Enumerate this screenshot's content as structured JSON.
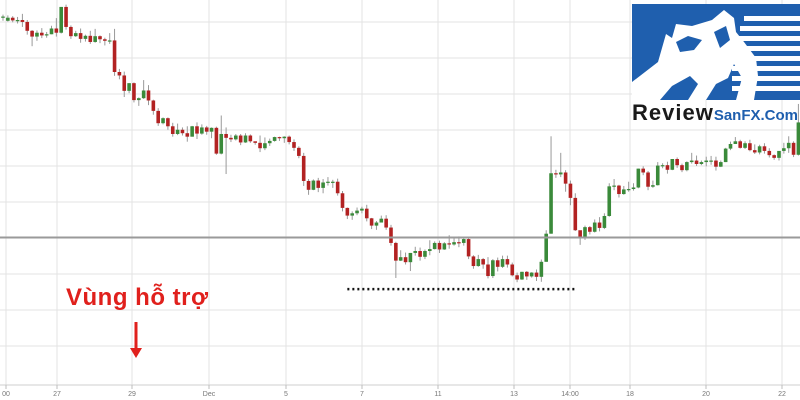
{
  "chart_data": {
    "type": "candlestick",
    "x_tick_labels": [
      "00",
      "27",
      "29",
      "Dec",
      "5",
      "7",
      "11",
      "13",
      "14:00",
      "18",
      "20",
      "22"
    ],
    "grid": true,
    "ylim": [
      0,
      100
    ],
    "colors": {
      "up": "#3a8a3a",
      "down": "#b22222",
      "grid": "#e3e3e3",
      "support_line": "#9a9a9a",
      "neckline": "#111111",
      "annotation": "#e0201c"
    },
    "candles": [
      [
        95.6,
        95.7,
        94.6,
        96.2
      ],
      [
        94.6,
        95.4,
        94.4,
        96.0
      ],
      [
        95.4,
        94.7,
        94.2,
        95.8
      ],
      [
        94.7,
        94.8,
        93.9,
        95.6
      ],
      [
        94.8,
        94.3,
        93.0,
        96.4
      ],
      [
        94.3,
        92.0,
        91.0,
        94.8
      ],
      [
        92.0,
        90.5,
        88.0,
        92.2
      ],
      [
        90.5,
        91.5,
        89.4,
        92.1
      ],
      [
        91.5,
        90.8,
        90.1,
        92.7
      ],
      [
        90.8,
        91.1,
        90.2,
        91.7
      ],
      [
        91.1,
        92.6,
        91.1,
        93.3
      ],
      [
        92.6,
        91.5,
        90.5,
        95.3
      ],
      [
        91.5,
        98.2,
        91.3,
        98.2
      ],
      [
        98.2,
        93.0,
        92.3,
        98.8
      ],
      [
        93.0,
        90.6,
        89.9,
        93.4
      ],
      [
        90.6,
        91.4,
        90.4,
        92.0
      ],
      [
        91.4,
        89.9,
        88.9,
        92.6
      ],
      [
        89.9,
        90.7,
        89.2,
        91.0
      ],
      [
        90.7,
        89.1,
        88.6,
        92.0
      ],
      [
        89.1,
        90.6,
        88.9,
        92.5
      ],
      [
        90.6,
        89.8,
        88.8,
        90.8
      ],
      [
        89.8,
        89.4,
        88.2,
        90.2
      ],
      [
        89.4,
        89.5,
        88.6,
        91.4
      ],
      [
        89.5,
        81.3,
        80.3,
        92.5
      ],
      [
        81.3,
        80.4,
        79.4,
        82.1
      ],
      [
        80.4,
        76.4,
        74.8,
        81.4
      ],
      [
        76.4,
        78.4,
        75.8,
        78.4
      ],
      [
        78.4,
        74.0,
        73.4,
        78.6
      ],
      [
        74.0,
        74.5,
        72.5,
        74.7
      ],
      [
        74.5,
        76.5,
        74.3,
        79.2
      ],
      [
        76.5,
        73.9,
        72.7,
        77.9
      ],
      [
        73.9,
        71.2,
        70.2,
        74.1
      ],
      [
        71.2,
        68.0,
        67.3,
        71.9
      ],
      [
        68.0,
        69.3,
        67.7,
        69.5
      ],
      [
        69.3,
        67.2,
        66.3,
        69.5
      ],
      [
        67.2,
        65.2,
        64.5,
        68.1
      ],
      [
        65.2,
        66.3,
        64.9,
        67.9
      ],
      [
        66.3,
        65.4,
        64.8,
        66.9
      ],
      [
        65.4,
        64.5,
        63.2,
        67.2
      ],
      [
        64.5,
        67.2,
        64.5,
        67.3
      ],
      [
        67.2,
        65.3,
        63.9,
        68.2
      ],
      [
        65.3,
        66.9,
        65.0,
        67.7
      ],
      [
        66.9,
        65.8,
        65.0,
        67.3
      ],
      [
        65.8,
        66.8,
        64.1,
        66.9
      ],
      [
        66.8,
        60.1,
        59.8,
        67.1
      ],
      [
        60.1,
        65.2,
        59.9,
        70.0
      ],
      [
        65.2,
        64.2,
        54.8,
        66.9
      ],
      [
        64.2,
        63.8,
        63.1,
        65.0
      ],
      [
        63.8,
        64.8,
        63.5,
        65.2
      ],
      [
        64.8,
        63.0,
        62.3,
        65.2
      ],
      [
        63.0,
        64.8,
        62.9,
        65.4
      ],
      [
        64.8,
        63.3,
        62.9,
        65.1
      ],
      [
        63.3,
        62.9,
        62.4,
        63.2
      ],
      [
        62.9,
        61.5,
        60.5,
        64.8
      ],
      [
        61.5,
        62.8,
        61.0,
        64.3
      ],
      [
        62.8,
        63.4,
        62.1,
        64.0
      ],
      [
        63.4,
        64.4,
        63.2,
        64.5
      ],
      [
        64.4,
        64.1,
        63.4,
        64.5
      ],
      [
        64.1,
        64.5,
        62.9,
        64.6
      ],
      [
        64.5,
        63.1,
        62.5,
        64.8
      ],
      [
        63.1,
        61.6,
        60.8,
        63.8
      ],
      [
        61.6,
        59.5,
        58.9,
        62.0
      ],
      [
        59.5,
        53.0,
        51.7,
        60.3
      ],
      [
        53.0,
        50.7,
        49.4,
        53.5
      ],
      [
        50.7,
        53.1,
        50.6,
        53.4
      ],
      [
        53.1,
        51.2,
        50.1,
        53.8
      ],
      [
        51.2,
        52.6,
        49.8,
        53.5
      ],
      [
        52.6,
        52.8,
        51.8,
        54.0
      ],
      [
        52.8,
        52.8,
        51.2,
        53.3
      ],
      [
        52.8,
        49.8,
        49.2,
        53.6
      ],
      [
        49.8,
        46.0,
        45.1,
        50.4
      ],
      [
        46.0,
        44.0,
        43.1,
        46.1
      ],
      [
        44.0,
        44.6,
        42.9,
        45.1
      ],
      [
        44.6,
        45.3,
        44.1,
        46.1
      ],
      [
        45.3,
        45.8,
        44.6,
        46.3
      ],
      [
        45.8,
        43.3,
        42.5,
        46.8
      ],
      [
        43.3,
        41.4,
        40.5,
        43.4
      ],
      [
        41.4,
        42.2,
        40.3,
        42.6
      ],
      [
        42.2,
        43.2,
        42.3,
        44.0
      ],
      [
        43.2,
        40.9,
        40.3,
        44.1
      ],
      [
        40.9,
        36.9,
        36.2,
        41.6
      ],
      [
        36.9,
        32.3,
        27.8,
        37.2
      ],
      [
        32.3,
        33.2,
        32.2,
        35.0
      ],
      [
        33.2,
        31.9,
        31.3,
        34.4
      ],
      [
        31.9,
        34.3,
        29.6,
        34.3
      ],
      [
        34.3,
        34.8,
        33.6,
        35.9
      ],
      [
        34.8,
        33.3,
        32.3,
        35.7
      ],
      [
        33.3,
        34.8,
        32.7,
        35.2
      ],
      [
        34.8,
        35.3,
        33.7,
        37.6
      ],
      [
        35.3,
        36.9,
        35.2,
        37.3
      ],
      [
        36.9,
        35.2,
        34.3,
        37.5
      ],
      [
        35.2,
        36.8,
        35.1,
        37.1
      ],
      [
        36.8,
        36.5,
        35.4,
        38.9
      ],
      [
        36.5,
        37.1,
        36.2,
        38.3
      ],
      [
        37.1,
        36.9,
        35.8,
        38.6
      ],
      [
        36.9,
        37.9,
        36.2,
        38.5
      ],
      [
        37.9,
        33.4,
        32.7,
        38.3
      ],
      [
        33.4,
        30.9,
        30.2,
        33.7
      ],
      [
        30.9,
        32.7,
        30.7,
        33.8
      ],
      [
        32.7,
        31.3,
        30.2,
        33.0
      ],
      [
        31.3,
        28.3,
        27.7,
        33.2
      ],
      [
        28.3,
        32.4,
        27.8,
        32.7
      ],
      [
        32.4,
        30.7,
        29.5,
        33.1
      ],
      [
        30.7,
        32.7,
        30.4,
        33.6
      ],
      [
        32.7,
        31.3,
        30.5,
        33.6
      ],
      [
        31.3,
        28.5,
        28.2,
        31.8
      ],
      [
        28.5,
        27.4,
        26.7,
        29.2
      ],
      [
        27.4,
        29.4,
        27.3,
        29.4
      ],
      [
        29.4,
        28.2,
        27.3,
        29.6
      ],
      [
        28.2,
        29.2,
        27.9,
        29.3
      ],
      [
        29.2,
        28.1,
        27.0,
        30.0
      ],
      [
        28.1,
        32.0,
        26.8,
        32.6
      ],
      [
        32.0,
        39.3,
        32.0,
        40.2
      ],
      [
        39.3,
        55.0,
        39.3,
        64.6
      ],
      [
        55.0,
        54.7,
        53.8,
        55.9
      ],
      [
        54.7,
        55.2,
        54.0,
        60.3
      ],
      [
        55.2,
        52.3,
        50.2,
        55.8
      ],
      [
        52.3,
        48.6,
        46.7,
        53.1
      ],
      [
        48.6,
        40.2,
        40.0,
        49.8
      ],
      [
        40.2,
        38.4,
        36.4,
        39.8
      ],
      [
        38.4,
        41.0,
        37.7,
        41.4
      ],
      [
        41.0,
        39.8,
        39.1,
        41.3
      ],
      [
        39.8,
        42.2,
        39.6,
        43.0
      ],
      [
        42.2,
        40.8,
        39.9,
        43.6
      ],
      [
        40.8,
        43.9,
        40.5,
        44.6
      ],
      [
        43.9,
        51.6,
        43.7,
        52.4
      ],
      [
        51.6,
        51.8,
        50.6,
        53.5
      ],
      [
        51.8,
        49.6,
        48.7,
        52.0
      ],
      [
        49.6,
        50.8,
        49.4,
        51.7
      ],
      [
        50.8,
        50.9,
        50.2,
        52.8
      ],
      [
        50.9,
        51.3,
        50.5,
        52.4
      ],
      [
        51.3,
        56.2,
        51.1,
        56.2
      ],
      [
        56.2,
        55.2,
        54.5,
        56.8
      ],
      [
        55.2,
        51.5,
        50.6,
        55.6
      ],
      [
        51.5,
        51.9,
        51.2,
        53.1
      ],
      [
        51.9,
        57.0,
        51.8,
        57.9
      ],
      [
        57.0,
        57.1,
        56.3,
        57.6
      ],
      [
        57.1,
        55.9,
        54.9,
        58.0
      ],
      [
        55.9,
        58.7,
        55.8,
        58.7
      ],
      [
        58.7,
        57.1,
        56.4,
        59.1
      ],
      [
        57.1,
        55.8,
        55.3,
        57.5
      ],
      [
        55.8,
        57.9,
        55.5,
        58.1
      ],
      [
        57.9,
        58.3,
        57.5,
        60.3
      ],
      [
        58.3,
        57.4,
        56.9,
        59.6
      ],
      [
        57.4,
        57.9,
        57.1,
        58.3
      ],
      [
        57.9,
        58.3,
        56.8,
        59.3
      ],
      [
        58.3,
        58.3,
        57.2,
        59.5
      ],
      [
        58.3,
        56.7,
        55.7,
        59.3
      ],
      [
        56.7,
        57.9,
        56.6,
        58.3
      ],
      [
        57.9,
        61.4,
        57.9,
        61.6
      ],
      [
        61.4,
        62.6,
        61.0,
        63.2
      ],
      [
        62.6,
        63.3,
        62.6,
        64.4
      ],
      [
        63.3,
        61.6,
        61.4,
        63.7
      ],
      [
        61.6,
        62.8,
        61.3,
        63.3
      ],
      [
        62.8,
        61.0,
        60.7,
        63.7
      ],
      [
        61.0,
        60.4,
        60.0,
        62.5
      ],
      [
        60.4,
        62.0,
        59.9,
        62.4
      ],
      [
        62.0,
        60.8,
        60.1,
        62.8
      ],
      [
        60.8,
        59.7,
        59.1,
        61.5
      ],
      [
        59.7,
        59.0,
        58.5,
        59.9
      ],
      [
        59.0,
        60.8,
        58.3,
        60.7
      ],
      [
        60.8,
        61.5,
        60.1,
        62.9
      ],
      [
        61.5,
        62.9,
        60.3,
        64.6
      ],
      [
        62.9,
        59.8,
        59.2,
        63.3
      ],
      [
        59.8,
        68.2,
        59.6,
        73.0
      ]
    ],
    "support_level": 38.3,
    "neckline": {
      "level": 24.9,
      "from_candle": 71,
      "to_candle": 118
    },
    "annotations": [
      {
        "text": "Vùng hỗ trợ",
        "arrow": "down"
      }
    ]
  },
  "logo": {
    "text_review": "Review",
    "text_sanfx": "SanFX.Com",
    "icon": "bull-icon",
    "colors": {
      "blue": "#1f5fae",
      "dark": "#1a1a1a",
      "white": "#ffffff"
    }
  }
}
